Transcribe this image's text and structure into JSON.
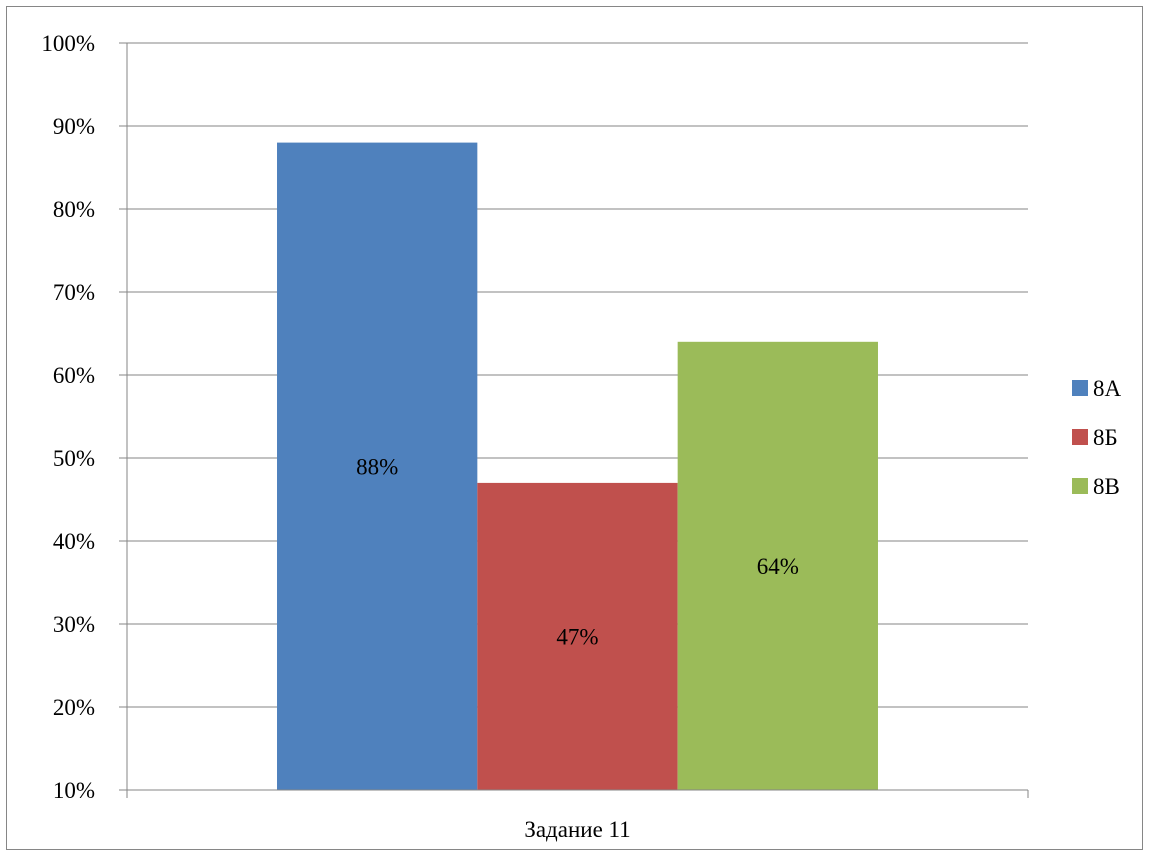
{
  "chart_data": {
    "type": "bar",
    "categories": [
      "Задание 11"
    ],
    "series": [
      {
        "name": "8А",
        "values": [
          0.88
        ],
        "label": "88%",
        "color": "#4f81bd"
      },
      {
        "name": "8Б",
        "values": [
          0.47
        ],
        "label": "47%",
        "color": "#c0504d"
      },
      {
        "name": "8В",
        "values": [
          0.64
        ],
        "label": "64%",
        "color": "#9bbb59"
      }
    ],
    "ylim": [
      0.1,
      1.0
    ],
    "yticks": [
      "10%",
      "20%",
      "30%",
      "40%",
      "50%",
      "60%",
      "70%",
      "80%",
      "90%",
      "100%"
    ],
    "grid": true,
    "legend": "right",
    "gridColor": "#868686"
  }
}
